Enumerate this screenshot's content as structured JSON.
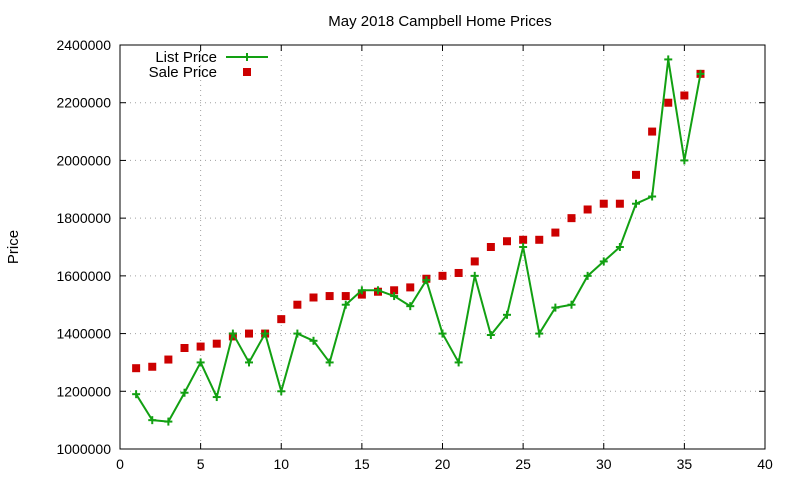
{
  "chart_data": {
    "type": "line",
    "title": "May 2018 Campbell Home Prices",
    "xlabel": "",
    "ylabel": "Price",
    "xlim": [
      0,
      40
    ],
    "ylim": [
      1000000,
      2400000
    ],
    "x_ticks": [
      0,
      5,
      10,
      15,
      20,
      25,
      30,
      35,
      40
    ],
    "y_ticks": [
      1000000,
      1200000,
      1400000,
      1600000,
      1800000,
      2000000,
      2200000,
      2400000
    ],
    "grid": true,
    "legend_position": "top-left",
    "series": [
      {
        "name": "List Price",
        "style": "line-with-plus-markers",
        "color": "#12a012",
        "x": [
          1,
          2,
          3,
          4,
          5,
          6,
          7,
          8,
          9,
          10,
          11,
          12,
          13,
          14,
          15,
          16,
          17,
          18,
          19,
          20,
          21,
          22,
          23,
          24,
          25,
          26,
          27,
          28,
          29,
          30,
          31,
          32,
          33,
          34,
          35,
          36
        ],
        "values": [
          1190000,
          1100000,
          1095000,
          1195000,
          1300000,
          1180000,
          1400000,
          1300000,
          1400000,
          1200000,
          1400000,
          1375000,
          1300000,
          1500000,
          1550000,
          1550000,
          1530000,
          1495000,
          1585000,
          1400000,
          1300000,
          1600000,
          1395000,
          1465000,
          1700000,
          1400000,
          1490000,
          1500000,
          1600000,
          1650000,
          1700000,
          1850000,
          1875000,
          2350000,
          2000000,
          2300000
        ]
      },
      {
        "name": "Sale Price",
        "style": "square-markers",
        "color": "#cc0000",
        "x": [
          1,
          2,
          3,
          4,
          5,
          6,
          7,
          8,
          9,
          10,
          11,
          12,
          13,
          14,
          15,
          16,
          17,
          18,
          19,
          20,
          21,
          22,
          23,
          24,
          25,
          26,
          27,
          28,
          29,
          30,
          31,
          32,
          33,
          34,
          35,
          36
        ],
        "values": [
          1280000,
          1285000,
          1310000,
          1350000,
          1355000,
          1365000,
          1390000,
          1400000,
          1400000,
          1450000,
          1500000,
          1525000,
          1530000,
          1530000,
          1535000,
          1545000,
          1550000,
          1560000,
          1590000,
          1600000,
          1610000,
          1650000,
          1700000,
          1720000,
          1725000,
          1725000,
          1750000,
          1800000,
          1830000,
          1850000,
          1850000,
          1950000,
          2100000,
          2200000,
          2225000,
          2300000
        ]
      }
    ]
  }
}
